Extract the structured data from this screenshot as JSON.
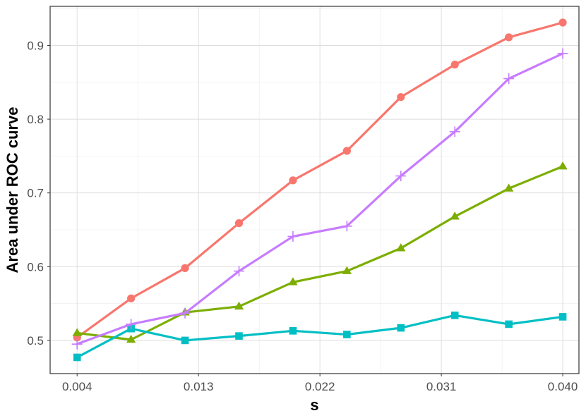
{
  "chart_data": {
    "type": "line",
    "title": "",
    "xlabel": "s",
    "ylabel": "Area under ROC curve",
    "x": [
      0.004,
      0.008,
      0.012,
      0.016,
      0.02,
      0.024,
      0.028,
      0.032,
      0.036,
      0.04
    ],
    "xlim": [
      0.002,
      0.0412
    ],
    "ylim": [
      0.455,
      0.953
    ],
    "x_ticks": [
      0.004,
      0.013,
      0.022,
      0.031,
      0.04
    ],
    "x_tick_labels": [
      "0.004",
      "0.013",
      "0.022",
      "0.031",
      "0.040"
    ],
    "y_ticks": [
      0.5,
      0.6,
      0.7,
      0.8,
      0.9
    ],
    "y_tick_labels": [
      "0.5",
      "0.6",
      "0.7",
      "0.8",
      "0.9"
    ],
    "grid": true,
    "legend": "none",
    "series": [
      {
        "color": "#F8766D",
        "marker": "circle",
        "values": [
          0.504,
          0.557,
          0.598,
          0.659,
          0.717,
          0.757,
          0.83,
          0.874,
          0.911,
          0.931
        ]
      },
      {
        "color": "#7CAE00",
        "marker": "triangle",
        "values": [
          0.51,
          0.501,
          0.538,
          0.546,
          0.579,
          0.594,
          0.625,
          0.668,
          0.706,
          0.736
        ]
      },
      {
        "color": "#00BFC4",
        "marker": "square",
        "values": [
          0.477,
          0.516,
          0.5,
          0.506,
          0.513,
          0.508,
          0.517,
          0.534,
          0.522,
          0.532
        ]
      },
      {
        "color": "#C77CFF",
        "marker": "plus",
        "values": [
          0.495,
          0.522,
          0.537,
          0.594,
          0.641,
          0.655,
          0.723,
          0.783,
          0.855,
          0.889
        ]
      }
    ]
  }
}
